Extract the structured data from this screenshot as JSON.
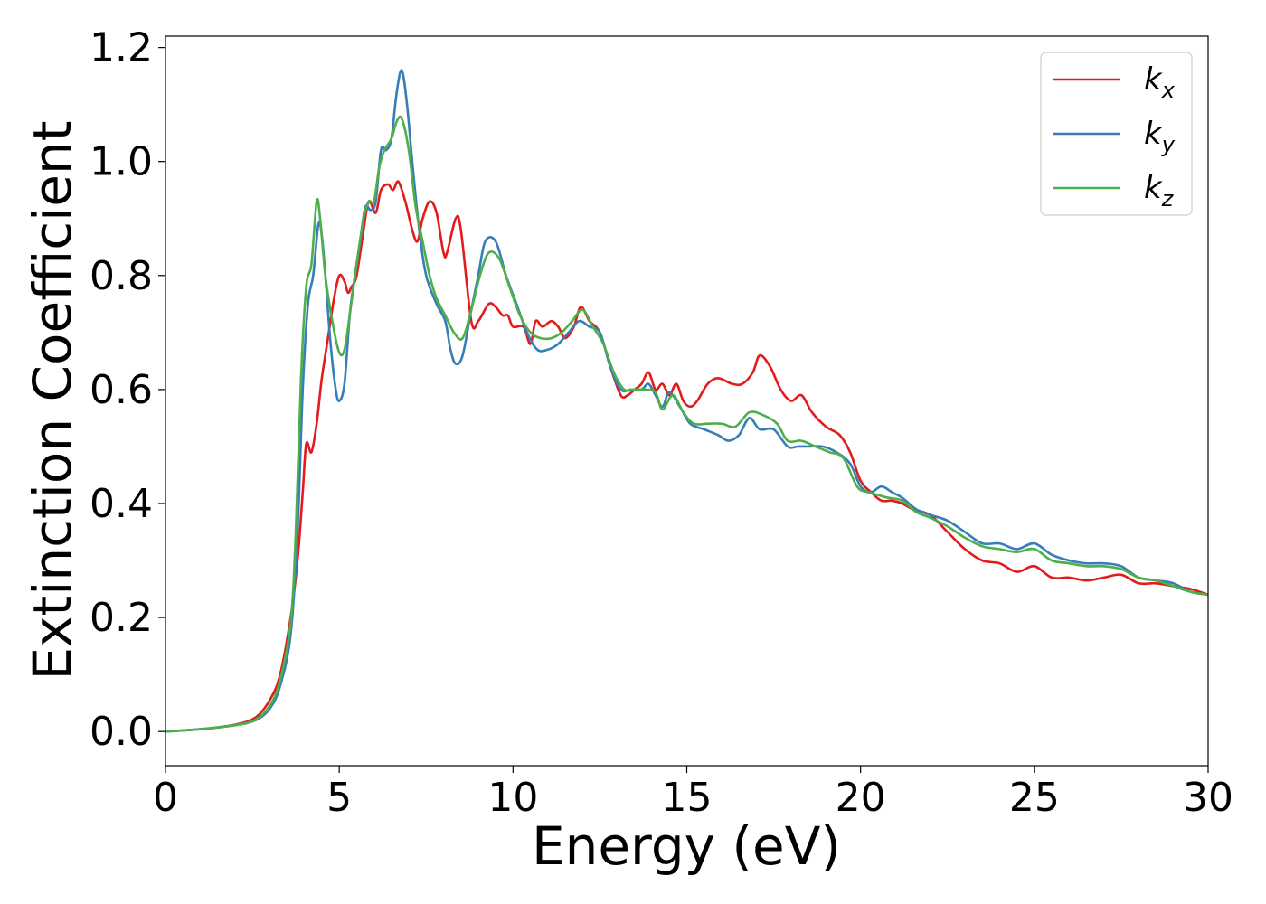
{
  "chart_data": {
    "type": "line",
    "title": "",
    "xlabel": "Energy (eV)",
    "ylabel": "Extinction Coefficient",
    "xlim": [
      0,
      30
    ],
    "ylim": [
      -0.06,
      1.22
    ],
    "xticks": [
      0,
      5,
      10,
      15,
      20,
      25,
      30
    ],
    "xtick_labels": [
      "0",
      "5",
      "10",
      "15",
      "20",
      "25",
      "30"
    ],
    "yticks": [
      0.0,
      0.2,
      0.4,
      0.6,
      0.8,
      1.0,
      1.2
    ],
    "ytick_labels": [
      "0.0",
      "0.2",
      "0.4",
      "0.6",
      "0.8",
      "1.0",
      "1.2"
    ],
    "grid": false,
    "legend_position": "top-right",
    "series": [
      {
        "name": "k",
        "subscript": "x",
        "color": "#e41a1c",
        "points": [
          [
            0,
            0
          ],
          [
            1,
            0.004
          ],
          [
            2,
            0.012
          ],
          [
            2.6,
            0.025
          ],
          [
            3,
            0.055
          ],
          [
            3.3,
            0.1
          ],
          [
            3.6,
            0.2
          ],
          [
            3.8,
            0.3
          ],
          [
            3.95,
            0.42
          ],
          [
            4.05,
            0.505
          ],
          [
            4.2,
            0.49
          ],
          [
            4.35,
            0.54
          ],
          [
            4.5,
            0.62
          ],
          [
            4.7,
            0.7
          ],
          [
            4.85,
            0.76
          ],
          [
            5,
            0.8
          ],
          [
            5.15,
            0.79
          ],
          [
            5.25,
            0.77
          ],
          [
            5.35,
            0.78
          ],
          [
            5.5,
            0.8
          ],
          [
            5.7,
            0.88
          ],
          [
            5.85,
            0.93
          ],
          [
            6.05,
            0.91
          ],
          [
            6.2,
            0.95
          ],
          [
            6.4,
            0.96
          ],
          [
            6.55,
            0.95
          ],
          [
            6.7,
            0.965
          ],
          [
            6.9,
            0.93
          ],
          [
            7.1,
            0.88
          ],
          [
            7.25,
            0.86
          ],
          [
            7.4,
            0.9
          ],
          [
            7.6,
            0.93
          ],
          [
            7.8,
            0.91
          ],
          [
            8,
            0.84
          ],
          [
            8.1,
            0.84
          ],
          [
            8.35,
            0.9
          ],
          [
            8.5,
            0.88
          ],
          [
            8.8,
            0.72
          ],
          [
            9,
            0.72
          ],
          [
            9.3,
            0.75
          ],
          [
            9.5,
            0.745
          ],
          [
            9.7,
            0.73
          ],
          [
            9.85,
            0.73
          ],
          [
            10,
            0.71
          ],
          [
            10.3,
            0.71
          ],
          [
            10.5,
            0.68
          ],
          [
            10.65,
            0.72
          ],
          [
            10.85,
            0.71
          ],
          [
            11.1,
            0.72
          ],
          [
            11.3,
            0.71
          ],
          [
            11.5,
            0.69
          ],
          [
            11.75,
            0.71
          ],
          [
            11.95,
            0.745
          ],
          [
            12.2,
            0.72
          ],
          [
            12.5,
            0.7
          ],
          [
            12.8,
            0.64
          ],
          [
            13.1,
            0.59
          ],
          [
            13.3,
            0.59
          ],
          [
            13.5,
            0.6
          ],
          [
            13.7,
            0.61
          ],
          [
            13.9,
            0.63
          ],
          [
            14.1,
            0.6
          ],
          [
            14.3,
            0.61
          ],
          [
            14.5,
            0.59
          ],
          [
            14.7,
            0.61
          ],
          [
            14.9,
            0.58
          ],
          [
            15.1,
            0.57
          ],
          [
            15.3,
            0.58
          ],
          [
            15.6,
            0.61
          ],
          [
            15.9,
            0.62
          ],
          [
            16.3,
            0.61
          ],
          [
            16.6,
            0.61
          ],
          [
            16.9,
            0.63
          ],
          [
            17.1,
            0.66
          ],
          [
            17.4,
            0.64
          ],
          [
            17.7,
            0.6
          ],
          [
            18,
            0.58
          ],
          [
            18.3,
            0.59
          ],
          [
            18.6,
            0.56
          ],
          [
            19,
            0.535
          ],
          [
            19.4,
            0.52
          ],
          [
            19.7,
            0.49
          ],
          [
            20,
            0.44
          ],
          [
            20.3,
            0.42
          ],
          [
            20.6,
            0.405
          ],
          [
            20.9,
            0.405
          ],
          [
            21.2,
            0.4
          ],
          [
            21.5,
            0.39
          ],
          [
            22,
            0.38
          ],
          [
            22.5,
            0.35
          ],
          [
            23,
            0.32
          ],
          [
            23.5,
            0.3
          ],
          [
            24,
            0.295
          ],
          [
            24.5,
            0.28
          ],
          [
            25,
            0.29
          ],
          [
            25.5,
            0.27
          ],
          [
            26,
            0.27
          ],
          [
            26.5,
            0.265
          ],
          [
            27,
            0.27
          ],
          [
            27.5,
            0.275
          ],
          [
            28,
            0.26
          ],
          [
            28.5,
            0.26
          ],
          [
            29,
            0.255
          ],
          [
            29.5,
            0.25
          ],
          [
            30,
            0.24
          ]
        ]
      },
      {
        "name": "k",
        "subscript": "y",
        "color": "#377eb8",
        "points": [
          [
            0,
            0
          ],
          [
            1,
            0.004
          ],
          [
            2,
            0.011
          ],
          [
            2.6,
            0.02
          ],
          [
            3,
            0.04
          ],
          [
            3.3,
            0.08
          ],
          [
            3.6,
            0.17
          ],
          [
            3.8,
            0.35
          ],
          [
            3.95,
            0.6
          ],
          [
            4.1,
            0.75
          ],
          [
            4.25,
            0.8
          ],
          [
            4.4,
            0.89
          ],
          [
            4.5,
            0.87
          ],
          [
            4.6,
            0.8
          ],
          [
            4.75,
            0.68
          ],
          [
            4.9,
            0.6
          ],
          [
            5,
            0.58
          ],
          [
            5.15,
            0.61
          ],
          [
            5.3,
            0.73
          ],
          [
            5.45,
            0.8
          ],
          [
            5.6,
            0.86
          ],
          [
            5.75,
            0.92
          ],
          [
            5.9,
            0.915
          ],
          [
            6.05,
            0.93
          ],
          [
            6.2,
            1.02
          ],
          [
            6.35,
            1.02
          ],
          [
            6.5,
            1.04
          ],
          [
            6.65,
            1.12
          ],
          [
            6.8,
            1.16
          ],
          [
            6.95,
            1.1
          ],
          [
            7.1,
            1
          ],
          [
            7.3,
            0.88
          ],
          [
            7.5,
            0.8
          ],
          [
            7.8,
            0.75
          ],
          [
            8.05,
            0.72
          ],
          [
            8.2,
            0.67
          ],
          [
            8.35,
            0.645
          ],
          [
            8.55,
            0.66
          ],
          [
            8.8,
            0.74
          ],
          [
            9,
            0.8
          ],
          [
            9.2,
            0.86
          ],
          [
            9.5,
            0.86
          ],
          [
            9.8,
            0.8
          ],
          [
            10.1,
            0.75
          ],
          [
            10.4,
            0.7
          ],
          [
            10.7,
            0.67
          ],
          [
            11,
            0.67
          ],
          [
            11.3,
            0.68
          ],
          [
            11.6,
            0.7
          ],
          [
            11.9,
            0.72
          ],
          [
            12.2,
            0.71
          ],
          [
            12.5,
            0.7
          ],
          [
            12.8,
            0.64
          ],
          [
            13.1,
            0.6
          ],
          [
            13.4,
            0.6
          ],
          [
            13.7,
            0.6
          ],
          [
            13.9,
            0.61
          ],
          [
            14.1,
            0.59
          ],
          [
            14.3,
            0.57
          ],
          [
            14.5,
            0.595
          ],
          [
            14.8,
            0.57
          ],
          [
            15.1,
            0.54
          ],
          [
            15.5,
            0.53
          ],
          [
            15.9,
            0.52
          ],
          [
            16.2,
            0.51
          ],
          [
            16.5,
            0.52
          ],
          [
            16.8,
            0.55
          ],
          [
            17.1,
            0.53
          ],
          [
            17.5,
            0.53
          ],
          [
            17.9,
            0.5
          ],
          [
            18.2,
            0.5
          ],
          [
            18.5,
            0.5
          ],
          [
            18.9,
            0.5
          ],
          [
            19.3,
            0.49
          ],
          [
            19.7,
            0.47
          ],
          [
            20,
            0.43
          ],
          [
            20.3,
            0.42
          ],
          [
            20.6,
            0.43
          ],
          [
            20.9,
            0.42
          ],
          [
            21.2,
            0.41
          ],
          [
            21.6,
            0.39
          ],
          [
            22,
            0.38
          ],
          [
            22.5,
            0.37
          ],
          [
            23,
            0.35
          ],
          [
            23.5,
            0.33
          ],
          [
            24,
            0.33
          ],
          [
            24.5,
            0.32
          ],
          [
            25,
            0.33
          ],
          [
            25.5,
            0.31
          ],
          [
            26,
            0.3
          ],
          [
            26.5,
            0.295
          ],
          [
            27,
            0.295
          ],
          [
            27.5,
            0.29
          ],
          [
            28,
            0.27
          ],
          [
            28.5,
            0.265
          ],
          [
            29,
            0.26
          ],
          [
            29.5,
            0.245
          ],
          [
            30,
            0.24
          ]
        ]
      },
      {
        "name": "k",
        "subscript": "z",
        "color": "#4daf4a",
        "points": [
          [
            0,
            0
          ],
          [
            1,
            0.004
          ],
          [
            2,
            0.011
          ],
          [
            2.6,
            0.021
          ],
          [
            3,
            0.045
          ],
          [
            3.3,
            0.09
          ],
          [
            3.6,
            0.19
          ],
          [
            3.75,
            0.35
          ],
          [
            3.9,
            0.62
          ],
          [
            4.05,
            0.78
          ],
          [
            4.2,
            0.82
          ],
          [
            4.35,
            0.93
          ],
          [
            4.45,
            0.9
          ],
          [
            4.6,
            0.8
          ],
          [
            4.8,
            0.72
          ],
          [
            5,
            0.665
          ],
          [
            5.15,
            0.67
          ],
          [
            5.3,
            0.73
          ],
          [
            5.5,
            0.82
          ],
          [
            5.7,
            0.9
          ],
          [
            5.85,
            0.93
          ],
          [
            6,
            0.93
          ],
          [
            6.15,
            0.99
          ],
          [
            6.3,
            1.02
          ],
          [
            6.5,
            1.04
          ],
          [
            6.65,
            1.07
          ],
          [
            6.8,
            1.075
          ],
          [
            7,
            1.02
          ],
          [
            7.2,
            0.92
          ],
          [
            7.4,
            0.86
          ],
          [
            7.6,
            0.8
          ],
          [
            7.8,
            0.76
          ],
          [
            8.05,
            0.73
          ],
          [
            8.3,
            0.7
          ],
          [
            8.55,
            0.69
          ],
          [
            8.8,
            0.74
          ],
          [
            9.05,
            0.8
          ],
          [
            9.3,
            0.84
          ],
          [
            9.6,
            0.83
          ],
          [
            9.9,
            0.78
          ],
          [
            10.2,
            0.73
          ],
          [
            10.5,
            0.7
          ],
          [
            10.8,
            0.69
          ],
          [
            11.1,
            0.69
          ],
          [
            11.4,
            0.7
          ],
          [
            11.7,
            0.72
          ],
          [
            12,
            0.74
          ],
          [
            12.3,
            0.71
          ],
          [
            12.6,
            0.68
          ],
          [
            12.9,
            0.63
          ],
          [
            13.2,
            0.6
          ],
          [
            13.5,
            0.6
          ],
          [
            13.8,
            0.6
          ],
          [
            14.1,
            0.595
          ],
          [
            14.3,
            0.565
          ],
          [
            14.6,
            0.59
          ],
          [
            14.9,
            0.56
          ],
          [
            15.2,
            0.54
          ],
          [
            15.6,
            0.54
          ],
          [
            16,
            0.54
          ],
          [
            16.4,
            0.535
          ],
          [
            16.8,
            0.56
          ],
          [
            17.2,
            0.555
          ],
          [
            17.6,
            0.54
          ],
          [
            17.9,
            0.51
          ],
          [
            18.3,
            0.51
          ],
          [
            18.7,
            0.5
          ],
          [
            19.1,
            0.49
          ],
          [
            19.5,
            0.48
          ],
          [
            19.9,
            0.43
          ],
          [
            20.2,
            0.42
          ],
          [
            20.5,
            0.415
          ],
          [
            20.8,
            0.41
          ],
          [
            21.2,
            0.405
          ],
          [
            21.6,
            0.385
          ],
          [
            22,
            0.375
          ],
          [
            22.5,
            0.36
          ],
          [
            23,
            0.34
          ],
          [
            23.5,
            0.325
          ],
          [
            24,
            0.32
          ],
          [
            24.5,
            0.315
          ],
          [
            25,
            0.32
          ],
          [
            25.5,
            0.3
          ],
          [
            26,
            0.295
          ],
          [
            26.5,
            0.29
          ],
          [
            27,
            0.29
          ],
          [
            27.5,
            0.285
          ],
          [
            28,
            0.27
          ],
          [
            28.5,
            0.265
          ],
          [
            29,
            0.255
          ],
          [
            29.5,
            0.245
          ],
          [
            30,
            0.24
          ]
        ]
      }
    ]
  }
}
